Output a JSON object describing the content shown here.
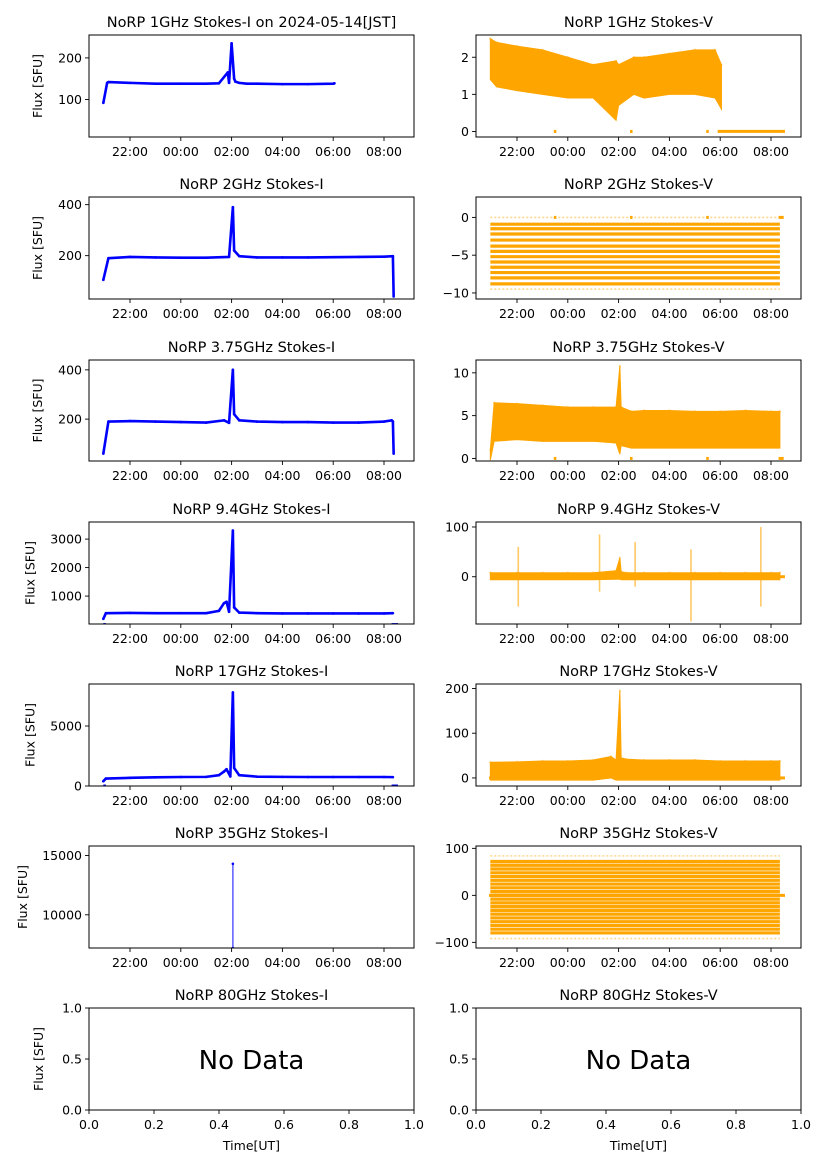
{
  "figure": {
    "title_main": "NoRP 1GHz Stokes-I on 2024-05-14[JST]",
    "x_tick_labels_time": [
      "22:00",
      "00:00",
      "02:00",
      "04:00",
      "06:00",
      "08:00"
    ],
    "x_tick_labels_nodata": [
      "0.0",
      "0.2",
      "0.4",
      "0.6",
      "0.8",
      "1.0"
    ],
    "xlabel": "Time[UT]",
    "ylabel": "Flux [SFU]",
    "no_data_text": "No Data",
    "colors": {
      "stokes_i": "#0000ff",
      "stokes_v": "#ffa500"
    }
  },
  "chart_data": [
    {
      "id": "1ghz-i",
      "type": "scatter",
      "title": "NoRP 1GHz Stokes-I on 2024-05-14[JST]",
      "ylabel": "Flux [SFU]",
      "xlabel": "",
      "color": "#0000ff",
      "xlim": [
        "20:23",
        "09:11"
      ],
      "ylim": [
        10,
        255
      ],
      "yticks": [
        100,
        200
      ],
      "ytick_labels": [
        "100",
        "200"
      ],
      "x": [
        -1.05,
        -0.9,
        -0.85,
        0,
        1,
        2,
        3,
        3.5,
        3.85,
        3.9,
        4.0,
        4.1,
        4.15,
        4.3,
        4.6,
        5,
        6,
        7,
        8,
        8.05
      ],
      "y": [
        92,
        140,
        142,
        140,
        138,
        138,
        138,
        139,
        165,
        140,
        235,
        150,
        143,
        140,
        138,
        138,
        137,
        137,
        138,
        139
      ]
    },
    {
      "id": "1ghz-v",
      "type": "scatter",
      "title": "NoRP 1GHz Stokes-V",
      "ylabel": "",
      "xlabel": "",
      "color": "#ffa500",
      "band": true,
      "xlim": [
        "20:23",
        "09:11"
      ],
      "ylim": [
        -0.15,
        2.6
      ],
      "yticks": [
        0,
        1,
        2
      ],
      "ytick_labels": [
        "0",
        "1",
        "2"
      ],
      "x": [
        -1.05,
        -0.8,
        0,
        1,
        2,
        3,
        3.9,
        4.0,
        4.6,
        5,
        6,
        7,
        7.8,
        8.05
      ],
      "y_low": [
        1.4,
        1.2,
        1.1,
        1.0,
        0.9,
        0.9,
        0.3,
        0.7,
        1.0,
        0.9,
        1.0,
        1.0,
        0.9,
        0.6
      ],
      "y_high": [
        2.5,
        2.4,
        2.3,
        2.2,
        2.0,
        1.8,
        1.9,
        1.8,
        2.0,
        2.0,
        2.1,
        2.2,
        2.2,
        1.8
      ],
      "zero_segments": [
        [
          1.45,
          1.55
        ],
        [
          4.45,
          4.55
        ],
        [
          7.45,
          7.55
        ],
        [
          7.9,
          10.55
        ]
      ]
    },
    {
      "id": "2ghz-i",
      "type": "scatter",
      "title": "NoRP 2GHz Stokes-I",
      "ylabel": "Flux [SFU]",
      "xlabel": "",
      "color": "#0000ff",
      "xlim": [
        "20:23",
        "09:11"
      ],
      "ylim": [
        30,
        430
      ],
      "yticks": [
        200,
        300,
        400
      ],
      "ytick_labels": [
        "200",
        "",
        "400"
      ],
      "x": [
        -1.05,
        -0.85,
        0,
        1,
        2,
        3,
        3.9,
        4.05,
        4.1,
        4.3,
        5,
        6,
        7,
        8,
        9,
        10,
        10.35,
        10.38
      ],
      "y": [
        105,
        190,
        195,
        193,
        192,
        192,
        195,
        390,
        220,
        198,
        193,
        193,
        193,
        194,
        195,
        196,
        198,
        40
      ],
      "ytick_visible": [
        "200",
        "400"
      ]
    },
    {
      "id": "2ghz-v",
      "type": "scatter",
      "title": "NoRP 2GHz Stokes-V",
      "ylabel": "",
      "xlabel": "",
      "color": "#ffa500",
      "striped": true,
      "xlim": [
        "20:23",
        "09:11"
      ],
      "ylim": [
        -10.8,
        2.7
      ],
      "yticks": [
        -10,
        -5,
        0
      ],
      "ytick_labels": [
        "−10",
        "−5",
        "0"
      ],
      "x_range": [
        -1.05,
        10.35
      ],
      "stripe_values": [
        -9.5,
        -8.8,
        -8,
        -7.3,
        -6.6,
        -5.9,
        -5.2,
        -4.5,
        -3.8,
        -3.0,
        -2.2,
        -1.5,
        -0.9,
        0
      ],
      "zero_segments": [
        [
          1.45,
          1.55
        ],
        [
          4.45,
          4.55
        ],
        [
          7.45,
          7.55
        ],
        [
          10.3,
          10.5
        ]
      ]
    },
    {
      "id": "375ghz-i",
      "type": "scatter",
      "title": "NoRP 3.75GHz Stokes-I",
      "ylabel": "Flux [SFU]",
      "xlabel": "",
      "color": "#0000ff",
      "xlim": [
        "20:23",
        "09:11"
      ],
      "ylim": [
        30,
        440
      ],
      "yticks": [
        200,
        400
      ],
      "ytick_labels": [
        "200",
        "400"
      ],
      "x": [
        -1.05,
        -0.85,
        0,
        1,
        2,
        3,
        3.7,
        3.9,
        4.05,
        4.1,
        4.3,
        5,
        6,
        7,
        8,
        9,
        10,
        10.3,
        10.35,
        10.38
      ],
      "y": [
        60,
        190,
        192,
        190,
        188,
        186,
        195,
        185,
        400,
        220,
        195,
        190,
        188,
        188,
        186,
        186,
        190,
        195,
        190,
        60
      ]
    },
    {
      "id": "375ghz-v",
      "type": "scatter",
      "title": "NoRP 3.75GHz Stokes-V",
      "ylabel": "",
      "xlabel": "",
      "color": "#ffa500",
      "band": true,
      "xlim": [
        "20:23",
        "09:11"
      ],
      "ylim": [
        -0.3,
        11.5
      ],
      "yticks": [
        0,
        5,
        10
      ],
      "ytick_labels": [
        "0",
        "5",
        "10"
      ],
      "x": [
        -1.05,
        -0.9,
        0,
        1,
        2,
        3,
        3.9,
        4.05,
        4.1,
        4.5,
        5,
        6,
        7,
        8,
        9,
        10,
        10.35
      ],
      "y_low": [
        -0.2,
        2.0,
        2.2,
        2.0,
        2.0,
        2.0,
        1.8,
        0.5,
        1.5,
        1.2,
        1.2,
        1.2,
        1.2,
        1.2,
        1.2,
        1.2,
        1.2
      ],
      "y_high": [
        1.0,
        6.5,
        6.4,
        6.2,
        6.0,
        6.0,
        6.0,
        10.8,
        6.0,
        5.5,
        5.6,
        5.6,
        5.5,
        5.5,
        5.6,
        5.5,
        5.5
      ],
      "zero_segments": [
        [
          1.45,
          1.55
        ],
        [
          4.45,
          4.55
        ],
        [
          7.45,
          7.55
        ],
        [
          10.3,
          10.5
        ]
      ]
    },
    {
      "id": "94ghz-i",
      "type": "scatter",
      "title": "NoRP 9.4GHz Stokes-I",
      "ylabel": "Flux [SFU]",
      "xlabel": "",
      "color": "#0000ff",
      "xlim": [
        "20:23",
        "09:11"
      ],
      "ylim": [
        20,
        3600
      ],
      "yticks": [
        1000,
        2000,
        3000
      ],
      "ytick_labels": [
        "1000",
        "2000",
        "3000"
      ],
      "x": [
        -1.05,
        -0.95,
        0,
        1,
        2,
        3,
        3.5,
        3.7,
        3.8,
        3.9,
        4.05,
        4.1,
        4.3,
        5,
        6,
        7,
        8,
        9,
        10,
        10.35
      ],
      "y": [
        200,
        400,
        410,
        400,
        400,
        400,
        480,
        750,
        800,
        450,
        3300,
        600,
        420,
        400,
        390,
        390,
        390,
        390,
        390,
        400
      ],
      "zero_segments": [
        [
          -1.05,
          -0.95
        ],
        [
          10.3,
          10.55
        ]
      ]
    },
    {
      "id": "94ghz-v",
      "type": "scatter",
      "title": "NoRP 9.4GHz Stokes-V",
      "ylabel": "",
      "xlabel": "",
      "color": "#ffa500",
      "band": true,
      "xlim": [
        "20:23",
        "09:11"
      ],
      "ylim": [
        -95,
        110
      ],
      "yticks": [
        0,
        100
      ],
      "ytick_labels": [
        "0",
        "100"
      ],
      "x": [
        -1.05,
        0,
        1,
        2,
        3,
        3.9,
        4.05,
        4.1,
        4.3,
        5,
        6,
        7,
        8,
        9,
        10,
        10.35
      ],
      "y_low": [
        -6,
        -6,
        -6,
        -6,
        -6,
        -5,
        -5,
        -6,
        -6,
        -6,
        -6,
        -6,
        -6,
        -6,
        -6,
        -6
      ],
      "y_high": [
        8,
        8,
        8,
        8,
        8,
        12,
        38,
        10,
        8,
        8,
        8,
        8,
        8,
        8,
        8,
        8
      ],
      "spikes": [
        {
          "x": 0.05,
          "low": -60,
          "high": 60
        },
        {
          "x": 3.25,
          "low": -30,
          "high": 85
        },
        {
          "x": 4.65,
          "low": -20,
          "high": 70
        },
        {
          "x": 6.85,
          "low": -90,
          "high": 55
        },
        {
          "x": 9.6,
          "low": -60,
          "high": 100
        }
      ],
      "zero_segments": [
        [
          10.3,
          10.55
        ]
      ]
    },
    {
      "id": "17ghz-i",
      "type": "scatter",
      "title": "NoRP 17GHz Stokes-I",
      "ylabel": "Flux [SFU]",
      "xlabel": "",
      "color": "#0000ff",
      "xlim": [
        "20:23",
        "09:11"
      ],
      "ylim": [
        0,
        8500
      ],
      "yticks": [
        0,
        5000
      ],
      "ytick_labels": [
        "0",
        "5000"
      ],
      "x": [
        -1.05,
        -0.95,
        0,
        1,
        2,
        3,
        3.5,
        3.7,
        3.8,
        3.95,
        4.05,
        4.1,
        4.3,
        5,
        6,
        7,
        8,
        9,
        10,
        10.35
      ],
      "y": [
        400,
        620,
        680,
        720,
        750,
        760,
        900,
        1200,
        1400,
        800,
        7800,
        1500,
        900,
        780,
        760,
        750,
        750,
        750,
        750,
        740
      ],
      "zero_segments": [
        [
          -1.05,
          -0.95
        ],
        [
          10.3,
          10.55
        ]
      ]
    },
    {
      "id": "17ghz-v",
      "type": "scatter",
      "title": "NoRP 17GHz Stokes-V",
      "ylabel": "",
      "xlabel": "",
      "color": "#ffa500",
      "band": true,
      "xlim": [
        "20:23",
        "09:11"
      ],
      "ylim": [
        -18,
        210
      ],
      "yticks": [
        0,
        100,
        200
      ],
      "ytick_labels": [
        "0",
        "100",
        "200"
      ],
      "x": [
        -1.05,
        0,
        1,
        2,
        3,
        3.7,
        3.9,
        4.05,
        4.1,
        4.3,
        5,
        6,
        7,
        8,
        9,
        10,
        10.35
      ],
      "y_low": [
        -5,
        -5,
        -5,
        -5,
        -5,
        0,
        -5,
        -5,
        -5,
        -5,
        -5,
        -5,
        -5,
        -5,
        -5,
        -5,
        -5
      ],
      "y_high": [
        35,
        36,
        38,
        38,
        40,
        48,
        40,
        195,
        45,
        42,
        40,
        40,
        40,
        38,
        38,
        38,
        38
      ],
      "zero_segments": [
        [
          -1.1,
          -0.95
        ],
        [
          10.3,
          10.55
        ]
      ]
    },
    {
      "id": "35ghz-i",
      "type": "scatter",
      "title": "NoRP 35GHz Stokes-I",
      "ylabel": "Flux [SFU]",
      "xlabel": "",
      "color": "#0000ff",
      "xlim": [
        "20:23",
        "09:11"
      ],
      "ylim": [
        7200,
        15800
      ],
      "yticks": [
        10000,
        15000
      ],
      "ytick_labels": [
        "10000",
        "15000"
      ],
      "x": [
        4.05,
        4.05
      ],
      "y": [
        7200,
        14300
      ]
    },
    {
      "id": "35ghz-v",
      "type": "scatter",
      "title": "NoRP 35GHz Stokes-V",
      "ylabel": "",
      "xlabel": "",
      "color": "#ffa500",
      "striped": true,
      "xlim": [
        "20:23",
        "09:11"
      ],
      "ylim": [
        -112,
        105
      ],
      "yticks": [
        -100,
        0,
        100
      ],
      "ytick_labels": [
        "−100",
        "0",
        "100"
      ],
      "x_range": [
        -1.05,
        10.35
      ],
      "stripe_values": [
        -92,
        -80,
        -72,
        -64,
        -56,
        -48,
        -40,
        -32,
        -24,
        -16,
        -8,
        0,
        8,
        16,
        24,
        32,
        40,
        48,
        56,
        64,
        72,
        84
      ],
      "zero_segments": [
        [
          -1.1,
          10.55
        ]
      ]
    },
    {
      "id": "80ghz-i",
      "type": "empty",
      "title": "NoRP 80GHz Stokes-I",
      "ylabel": "Flux [SFU]",
      "xlabel": "Time[UT]",
      "xlim": [
        0,
        1
      ],
      "ylim": [
        0,
        1
      ],
      "xticks": [
        0,
        0.2,
        0.4,
        0.6,
        0.8,
        1.0
      ],
      "yticks": [
        0,
        0.5,
        1.0
      ],
      "ytick_labels": [
        "0.0",
        "0.5",
        "1.0"
      ],
      "annotation": "No Data"
    },
    {
      "id": "80ghz-v",
      "type": "empty",
      "title": "NoRP 80GHz Stokes-V",
      "ylabel": "",
      "xlabel": "Time[UT]",
      "xlim": [
        0,
        1
      ],
      "ylim": [
        0,
        1
      ],
      "xticks": [
        0,
        0.2,
        0.4,
        0.6,
        0.8,
        1.0
      ],
      "yticks": [
        0,
        0.5,
        1.0
      ],
      "ytick_labels": [
        "0.0",
        "0.5",
        "1.0"
      ],
      "annotation": "No Data"
    }
  ]
}
